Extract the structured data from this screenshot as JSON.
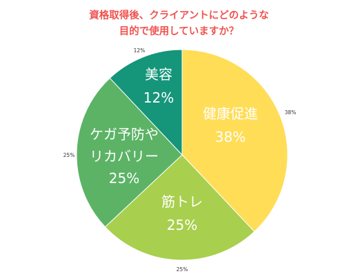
{
  "chart_data": {
    "type": "pie",
    "title_lines": [
      "資格取得後、クライアントにどのような",
      "目的で使用していますか？"
    ],
    "slices": [
      {
        "label_lines": [
          "健康促進"
        ],
        "value": 38,
        "inner_value_text": "38%",
        "outer_value_text": "38%",
        "color": "#ffdd57"
      },
      {
        "label_lines": [
          "筋トレ"
        ],
        "value": 25,
        "inner_value_text": "25%",
        "outer_value_text": "25%",
        "color": "#a8cf4d"
      },
      {
        "label_lines": [
          "ケガ予防や",
          "リカバリー"
        ],
        "value": 25,
        "inner_value_text": "25%",
        "outer_value_text": "25%",
        "color": "#5cb366"
      },
      {
        "label_lines": [
          "美容"
        ],
        "value": 12,
        "inner_value_text": "12%",
        "outer_value_text": "12%",
        "color": "#15957a"
      }
    ],
    "start_angle_deg": 0,
    "direction": "clockwise",
    "legend": "none"
  }
}
